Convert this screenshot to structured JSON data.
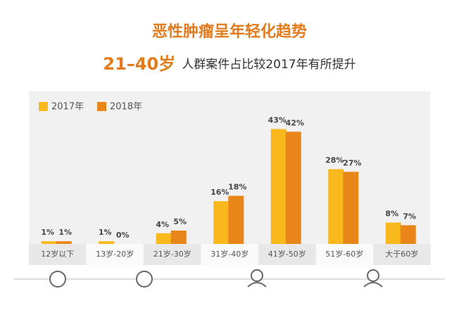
{
  "chart_data": {
    "type": "bar",
    "title": "恶性肿瘤呈年轻化趋势",
    "subtitle_highlight": "21–40岁",
    "subtitle": "人群案件占比较2017年有所提升",
    "categories": [
      "12岁以下",
      "13岁-20岁",
      "21岁-30岁",
      "31岁-40岁",
      "41岁-50岁",
      "51岁-60岁",
      "大于60岁"
    ],
    "series": [
      {
        "name": "2017年",
        "color": "#f9b81c",
        "values": [
          1,
          1,
          4,
          16,
          43,
          28,
          8
        ],
        "value_labels": [
          "1%",
          "1%",
          "4%",
          "16%",
          "43%",
          "28%",
          "8%"
        ]
      },
      {
        "name": "2018年",
        "color": "#e9861a",
        "values": [
          1,
          0,
          5,
          18,
          42,
          27,
          7
        ],
        "value_labels": [
          "1%",
          "0%",
          "5%",
          "18%",
          "42%",
          "27%",
          "7%"
        ]
      }
    ],
    "legend": "top-left"
  }
}
